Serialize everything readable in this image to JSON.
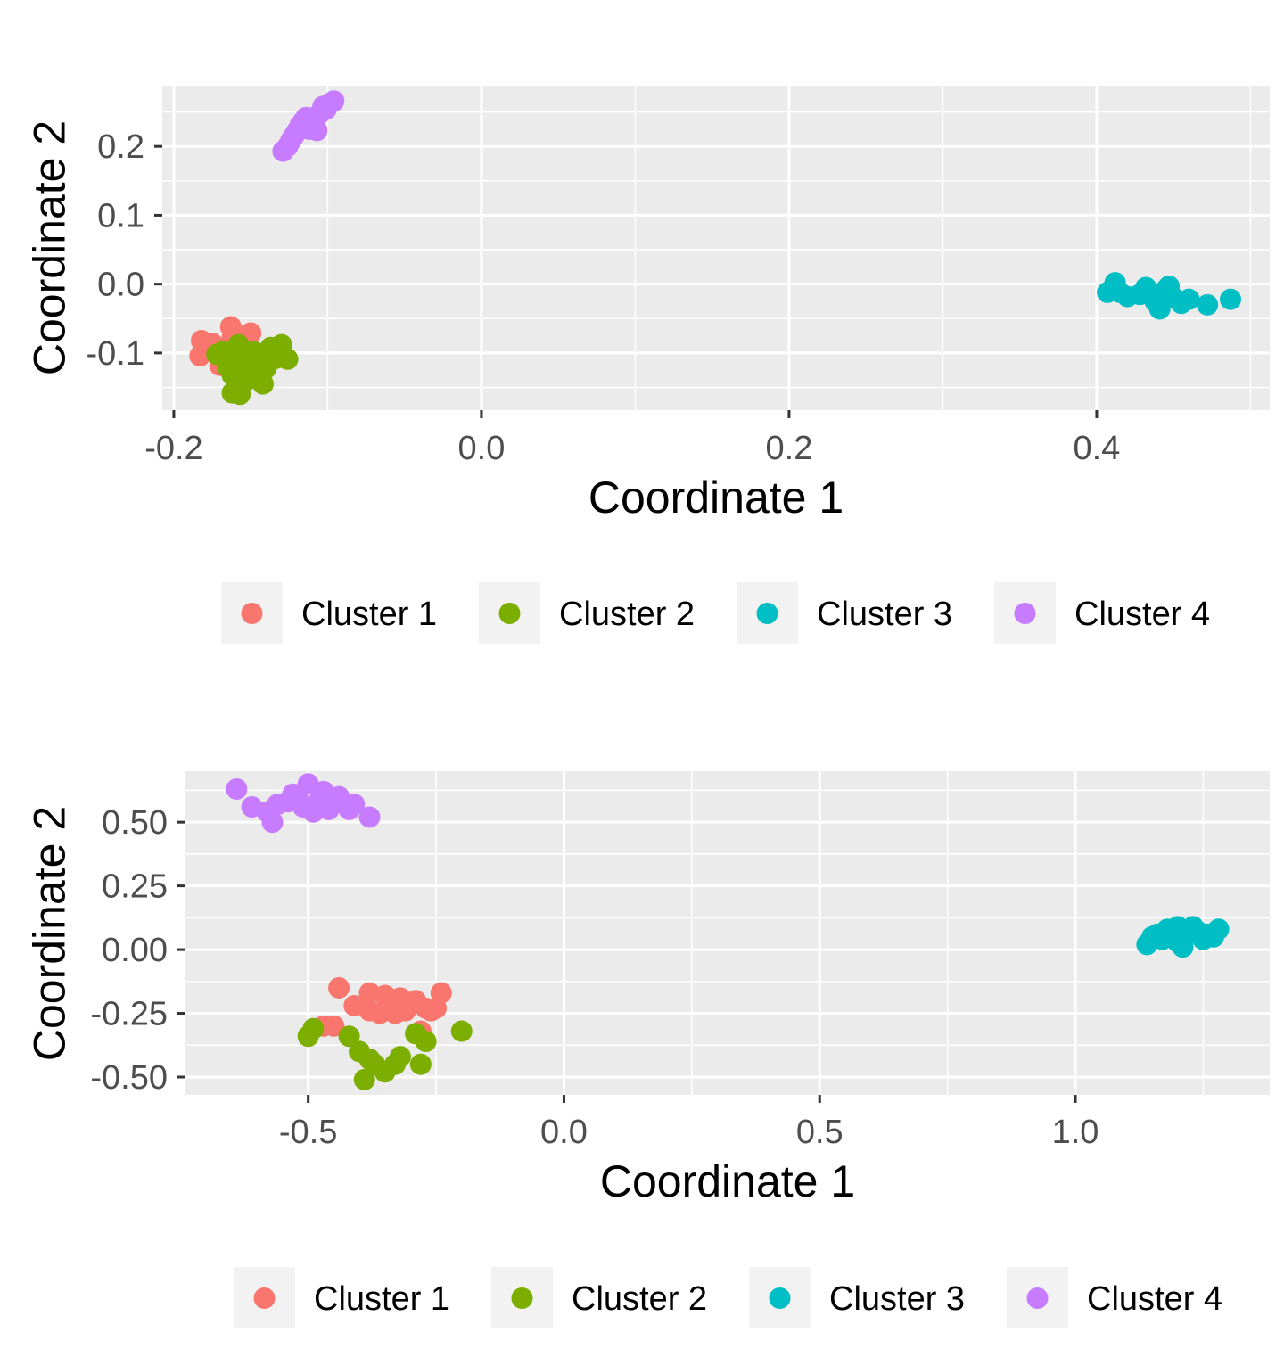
{
  "chart_data": [
    {
      "type": "scatter",
      "xlabel": "Coordinate 1",
      "ylabel": "Coordinate 2",
      "xlim": [
        -0.2075,
        0.5125
      ],
      "ylim": [
        -0.183,
        0.287
      ],
      "xticks": [
        -0.2,
        0.0,
        0.2,
        0.4
      ],
      "xtick_labels": [
        "-0.2",
        "0.0",
        "0.2",
        "0.4"
      ],
      "yticks": [
        -0.1,
        0.0,
        0.1,
        0.2
      ],
      "ytick_labels": [
        "-0.1",
        "0.0",
        "0.1",
        "0.2"
      ],
      "grid": true,
      "legend_position": "bottom",
      "series": [
        {
          "name": "Cluster 1",
          "color": "#F8766D",
          "points": [
            [
              -0.182,
              -0.082
            ],
            [
              -0.183,
              -0.104
            ],
            [
              -0.178,
              -0.097
            ],
            [
              -0.175,
              -0.086
            ],
            [
              -0.172,
              -0.095
            ],
            [
              -0.168,
              -0.108
            ],
            [
              -0.165,
              -0.112
            ],
            [
              -0.162,
              -0.078
            ],
            [
              -0.16,
              -0.091
            ],
            [
              -0.158,
              -0.075
            ],
            [
              -0.163,
              -0.062
            ],
            [
              -0.155,
              -0.088
            ],
            [
              -0.15,
              -0.071
            ],
            [
              -0.17,
              -0.118
            ]
          ]
        },
        {
          "name": "Cluster 2",
          "color": "#7CAE00",
          "points": [
            [
              -0.172,
              -0.102
            ],
            [
              -0.168,
              -0.098
            ],
            [
              -0.165,
              -0.12
            ],
            [
              -0.162,
              -0.132
            ],
            [
              -0.16,
              -0.108
            ],
            [
              -0.158,
              -0.088
            ],
            [
              -0.157,
              -0.16
            ],
            [
              -0.155,
              -0.115
            ],
            [
              -0.153,
              -0.14
            ],
            [
              -0.15,
              -0.124
            ],
            [
              -0.148,
              -0.098
            ],
            [
              -0.146,
              -0.13
            ],
            [
              -0.144,
              -0.11
            ],
            [
              -0.142,
              -0.145
            ],
            [
              -0.14,
              -0.122
            ],
            [
              -0.137,
              -0.092
            ],
            [
              -0.134,
              -0.108
            ],
            [
              -0.13,
              -0.088
            ],
            [
              -0.126,
              -0.109
            ],
            [
              -0.162,
              -0.158
            ]
          ]
        },
        {
          "name": "Cluster 3",
          "color": "#00BFC4",
          "points": [
            [
              0.407,
              -0.012
            ],
            [
              0.41,
              -0.008
            ],
            [
              0.412,
              0.002
            ],
            [
              0.415,
              -0.012
            ],
            [
              0.42,
              -0.018
            ],
            [
              0.428,
              -0.015
            ],
            [
              0.432,
              -0.005
            ],
            [
              0.438,
              -0.025
            ],
            [
              0.441,
              -0.036
            ],
            [
              0.445,
              -0.008
            ],
            [
              0.447,
              -0.003
            ],
            [
              0.45,
              -0.02
            ],
            [
              0.455,
              -0.028
            ],
            [
              0.46,
              -0.022
            ],
            [
              0.472,
              -0.03
            ],
            [
              0.487,
              -0.022
            ]
          ]
        },
        {
          "name": "Cluster 4",
          "color": "#C77CFF",
          "points": [
            [
              -0.129,
              0.193
            ],
            [
              -0.126,
              0.2
            ],
            [
              -0.124,
              0.208
            ],
            [
              -0.122,
              0.215
            ],
            [
              -0.12,
              0.222
            ],
            [
              -0.118,
              0.23
            ],
            [
              -0.116,
              0.236
            ],
            [
              -0.114,
              0.242
            ],
            [
              -0.112,
              0.225
            ],
            [
              -0.11,
              0.232
            ],
            [
              -0.108,
              0.24
            ],
            [
              -0.107,
              0.223
            ],
            [
              -0.105,
              0.248
            ],
            [
              -0.103,
              0.258
            ],
            [
              -0.101,
              0.254
            ],
            [
              -0.098,
              0.263
            ],
            [
              -0.096,
              0.266
            ]
          ]
        }
      ]
    },
    {
      "type": "scatter",
      "xlabel": "Coordinate 1",
      "ylabel": "Coordinate 2",
      "xlim": [
        -0.74,
        1.38
      ],
      "ylim": [
        -0.57,
        0.7
      ],
      "xticks": [
        -0.5,
        0.0,
        0.5,
        1.0
      ],
      "xtick_labels": [
        "-0.5",
        "0.0",
        "0.5",
        "1.0"
      ],
      "yticks": [
        -0.5,
        -0.25,
        0.0,
        0.25,
        0.5
      ],
      "ytick_labels": [
        "-0.50",
        "-0.25",
        "0.00",
        "0.25",
        "0.50"
      ],
      "grid": true,
      "legend_position": "bottom",
      "series": [
        {
          "name": "Cluster 1",
          "color": "#F8766D",
          "points": [
            [
              -0.44,
              -0.15
            ],
            [
              -0.47,
              -0.3
            ],
            [
              -0.45,
              -0.3
            ],
            [
              -0.41,
              -0.22
            ],
            [
              -0.38,
              -0.24
            ],
            [
              -0.38,
              -0.17
            ],
            [
              -0.36,
              -0.25
            ],
            [
              -0.35,
              -0.18
            ],
            [
              -0.34,
              -0.22
            ],
            [
              -0.33,
              -0.25
            ],
            [
              -0.32,
              -0.19
            ],
            [
              -0.31,
              -0.24
            ],
            [
              -0.29,
              -0.2
            ],
            [
              -0.27,
              -0.23
            ],
            [
              -0.26,
              -0.24
            ],
            [
              -0.25,
              -0.23
            ],
            [
              -0.24,
              -0.17
            ],
            [
              -0.28,
              -0.32
            ]
          ]
        },
        {
          "name": "Cluster 2",
          "color": "#7CAE00",
          "points": [
            [
              -0.5,
              -0.34
            ],
            [
              -0.49,
              -0.31
            ],
            [
              -0.42,
              -0.34
            ],
            [
              -0.4,
              -0.4
            ],
            [
              -0.39,
              -0.51
            ],
            [
              -0.38,
              -0.43
            ],
            [
              -0.37,
              -0.45
            ],
            [
              -0.35,
              -0.48
            ],
            [
              -0.33,
              -0.45
            ],
            [
              -0.32,
              -0.42
            ],
            [
              -0.29,
              -0.33
            ],
            [
              -0.28,
              -0.45
            ],
            [
              -0.27,
              -0.36
            ],
            [
              -0.2,
              -0.32
            ]
          ]
        },
        {
          "name": "Cluster 3",
          "color": "#00BFC4",
          "points": [
            [
              1.14,
              0.02
            ],
            [
              1.15,
              0.05
            ],
            [
              1.16,
              0.06
            ],
            [
              1.17,
              0.04
            ],
            [
              1.18,
              0.08
            ],
            [
              1.19,
              0.05
            ],
            [
              1.2,
              0.09
            ],
            [
              1.2,
              0.03
            ],
            [
              1.21,
              0.01
            ],
            [
              1.22,
              0.06
            ],
            [
              1.23,
              0.09
            ],
            [
              1.24,
              0.07
            ],
            [
              1.25,
              0.04
            ],
            [
              1.26,
              0.06
            ],
            [
              1.27,
              0.05
            ],
            [
              1.28,
              0.08
            ]
          ]
        },
        {
          "name": "Cluster 4",
          "color": "#C77CFF",
          "points": [
            [
              -0.64,
              0.63
            ],
            [
              -0.61,
              0.56
            ],
            [
              -0.58,
              0.54
            ],
            [
              -0.57,
              0.5
            ],
            [
              -0.56,
              0.57
            ],
            [
              -0.54,
              0.58
            ],
            [
              -0.53,
              0.61
            ],
            [
              -0.52,
              0.59
            ],
            [
              -0.51,
              0.56
            ],
            [
              -0.5,
              0.65
            ],
            [
              -0.49,
              0.54
            ],
            [
              -0.48,
              0.58
            ],
            [
              -0.47,
              0.62
            ],
            [
              -0.46,
              0.55
            ],
            [
              -0.44,
              0.6
            ],
            [
              -0.42,
              0.55
            ],
            [
              -0.41,
              0.57
            ],
            [
              -0.38,
              0.52
            ]
          ]
        }
      ]
    }
  ]
}
